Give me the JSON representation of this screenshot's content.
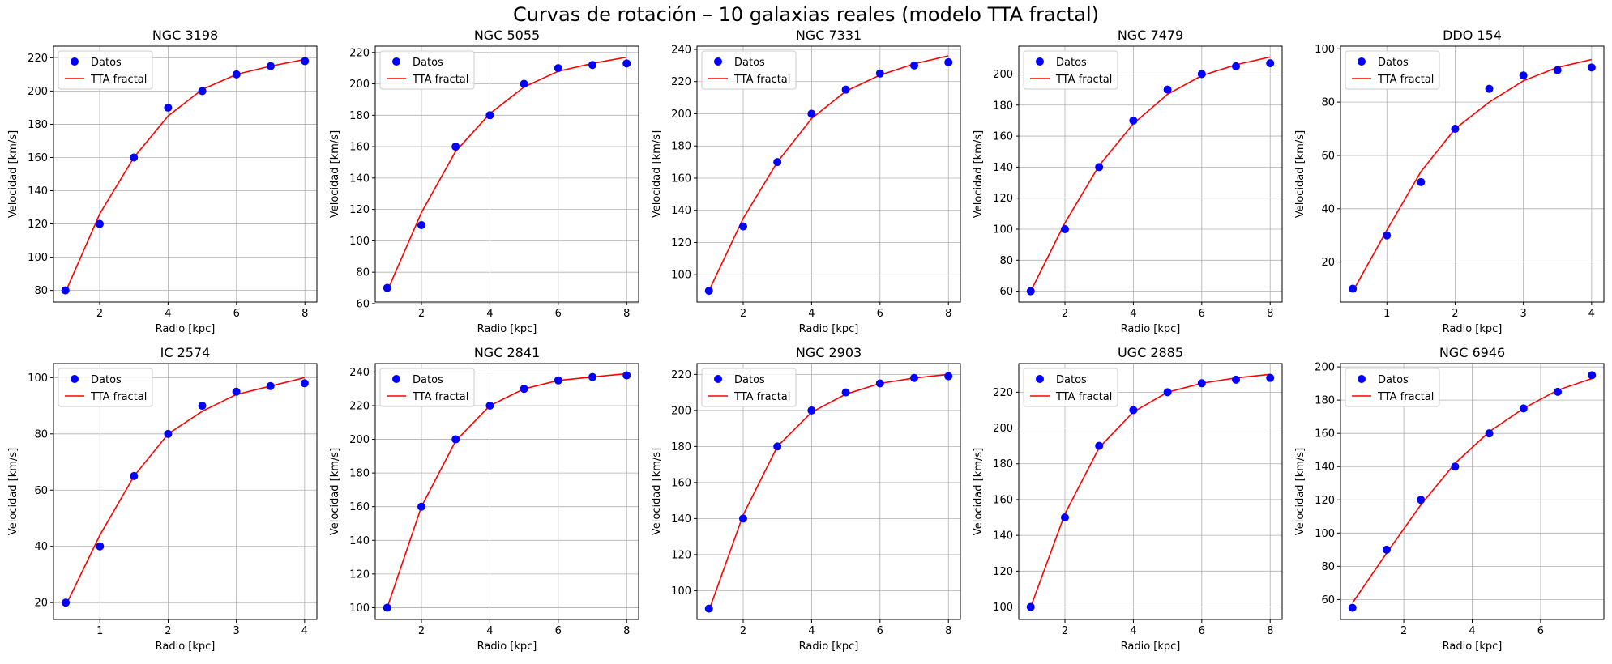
{
  "suptitle": "Curvas de rotación – 10 galaxias reales (modelo TTA fractal)",
  "legend": {
    "data_label": "Datos",
    "model_label": "TTA fractal",
    "placement": "upper-left"
  },
  "colors": {
    "data": "#0000ff",
    "model": "#ff0000",
    "grid": "#b0b0b0"
  },
  "chart_data": [
    {
      "type": "scatter+line",
      "title": "NGC 3198",
      "xlabel": "Radio [kpc]",
      "ylabel": "Velocidad [km/s]",
      "grid": true,
      "xlim": [
        0.65,
        8.35
      ],
      "ylim": [
        73,
        227
      ],
      "xticks": [
        2,
        4,
        6,
        8
      ],
      "yticks": [
        80,
        100,
        120,
        140,
        160,
        180,
        200,
        220
      ],
      "x": [
        1,
        2,
        3,
        4,
        5,
        6,
        7,
        8
      ],
      "data": [
        80,
        120,
        160,
        190,
        200,
        210,
        215,
        218
      ],
      "model": [
        79,
        126,
        160,
        185,
        201,
        210,
        215,
        219
      ]
    },
    {
      "type": "scatter+line",
      "title": "NGC 5055",
      "xlabel": "Radio [kpc]",
      "ylabel": "Velocidad [km/s]",
      "grid": true,
      "xlim": [
        0.65,
        8.35
      ],
      "ylim": [
        61,
        224
      ],
      "xticks": [
        2,
        4,
        6,
        8
      ],
      "yticks": [
        60,
        80,
        100,
        120,
        140,
        160,
        180,
        200,
        220
      ],
      "x": [
        1,
        2,
        3,
        4,
        5,
        6,
        7,
        8
      ],
      "data": [
        70,
        110,
        160,
        180,
        200,
        210,
        212,
        213
      ],
      "model": [
        68,
        118,
        157,
        181,
        198,
        208,
        213,
        217
      ]
    },
    {
      "type": "scatter+line",
      "title": "NGC 7331",
      "xlabel": "Radio [kpc]",
      "ylabel": "Velocidad [km/s]",
      "grid": true,
      "xlim": [
        0.65,
        8.35
      ],
      "ylim": [
        83,
        242
      ],
      "xticks": [
        2,
        4,
        6,
        8
      ],
      "yticks": [
        100,
        120,
        140,
        160,
        180,
        200,
        220,
        240
      ],
      "x": [
        1,
        2,
        3,
        4,
        5,
        6,
        7,
        8
      ],
      "data": [
        90,
        130,
        170,
        200,
        215,
        225,
        230,
        232
      ],
      "model": [
        90,
        135,
        170,
        197,
        214,
        224,
        231,
        236
      ]
    },
    {
      "type": "scatter+line",
      "title": "NGC 7479",
      "xlabel": "Radio [kpc]",
      "ylabel": "Velocidad [km/s]",
      "grid": true,
      "xlim": [
        0.65,
        8.35
      ],
      "ylim": [
        53,
        218
      ],
      "xticks": [
        2,
        4,
        6,
        8
      ],
      "yticks": [
        60,
        80,
        100,
        120,
        140,
        160,
        180,
        200
      ],
      "x": [
        1,
        2,
        3,
        4,
        5,
        6,
        7,
        8
      ],
      "data": [
        60,
        100,
        140,
        170,
        190,
        200,
        205,
        207
      ],
      "model": [
        60,
        104,
        141,
        168,
        187,
        199,
        206,
        211
      ]
    },
    {
      "type": "scatter+line",
      "title": "DDO 154",
      "xlabel": "Radio [kpc]",
      "ylabel": "Velocidad [km/s]",
      "grid": true,
      "xlim": [
        0.32,
        4.18
      ],
      "ylim": [
        5,
        101
      ],
      "xticks": [
        1,
        2,
        3,
        4
      ],
      "yticks": [
        20,
        40,
        60,
        80,
        100
      ],
      "x": [
        0.5,
        1.0,
        1.5,
        2.0,
        2.5,
        3.0,
        3.5,
        4.0
      ],
      "data": [
        10,
        30,
        50,
        70,
        85,
        90,
        92,
        93
      ],
      "model": [
        9,
        32,
        54,
        70,
        80,
        88,
        93,
        96
      ]
    },
    {
      "type": "scatter+line",
      "title": "IC 2574",
      "xlabel": "Radio [kpc]",
      "ylabel": "Velocidad [km/s]",
      "grid": true,
      "xlim": [
        0.32,
        4.18
      ],
      "ylim": [
        14,
        105
      ],
      "xticks": [
        1,
        2,
        3,
        4
      ],
      "yticks": [
        20,
        40,
        60,
        80,
        100
      ],
      "x": [
        0.5,
        1.0,
        1.5,
        2.0,
        2.5,
        3.0,
        3.5,
        4.0
      ],
      "data": [
        20,
        40,
        65,
        80,
        90,
        95,
        97,
        98
      ],
      "model": [
        19,
        44,
        65,
        80,
        88,
        94,
        97,
        100
      ]
    },
    {
      "type": "scatter+line",
      "title": "NGC 2841",
      "xlabel": "Radio [kpc]",
      "ylabel": "Velocidad [km/s]",
      "grid": true,
      "xlim": [
        0.65,
        8.35
      ],
      "ylim": [
        93,
        245
      ],
      "xticks": [
        2,
        4,
        6,
        8
      ],
      "yticks": [
        100,
        120,
        140,
        160,
        180,
        200,
        220,
        240
      ],
      "x": [
        1,
        2,
        3,
        4,
        5,
        6,
        7,
        8
      ],
      "data": [
        100,
        160,
        200,
        220,
        230,
        235,
        237,
        238
      ],
      "model": [
        100,
        160,
        199,
        220,
        230,
        235,
        237,
        239
      ]
    },
    {
      "type": "scatter+line",
      "title": "NGC 2903",
      "xlabel": "Radio [kpc]",
      "ylabel": "Velocidad [km/s]",
      "grid": true,
      "xlim": [
        0.65,
        8.35
      ],
      "ylim": [
        84,
        226
      ],
      "xticks": [
        2,
        4,
        6,
        8
      ],
      "yticks": [
        100,
        120,
        140,
        160,
        180,
        200,
        220
      ],
      "x": [
        1,
        2,
        3,
        4,
        5,
        6,
        7,
        8
      ],
      "data": [
        90,
        140,
        180,
        200,
        210,
        215,
        218,
        219
      ],
      "model": [
        89,
        142,
        180,
        199,
        209,
        215,
        218,
        220
      ]
    },
    {
      "type": "scatter+line",
      "title": "UGC 2885",
      "xlabel": "Radio [kpc]",
      "ylabel": "Velocidad [km/s]",
      "grid": true,
      "xlim": [
        0.65,
        8.35
      ],
      "ylim": [
        93,
        236
      ],
      "xticks": [
        2,
        4,
        6,
        8
      ],
      "yticks": [
        100,
        120,
        140,
        160,
        180,
        200,
        220
      ],
      "x": [
        1,
        2,
        3,
        4,
        5,
        6,
        7,
        8
      ],
      "data": [
        100,
        150,
        190,
        210,
        220,
        225,
        227,
        228
      ],
      "model": [
        100,
        152,
        189,
        209,
        220,
        225,
        228,
        230
      ]
    },
    {
      "type": "scatter+line",
      "title": "NGC 6946",
      "xlabel": "Radio [kpc]",
      "ylabel": "Velocidad [km/s]",
      "grid": true,
      "xlim": [
        0.15,
        7.85
      ],
      "ylim": [
        48,
        202
      ],
      "xticks": [
        2,
        4,
        6
      ],
      "yticks": [
        60,
        80,
        100,
        120,
        140,
        160,
        180,
        200
      ],
      "x": [
        0.5,
        1.5,
        2.5,
        3.5,
        4.5,
        5.5,
        6.5,
        7.5
      ],
      "data": [
        55,
        90,
        120,
        140,
        160,
        175,
        185,
        195
      ],
      "model": [
        58,
        88,
        117,
        142,
        161,
        175,
        186,
        193
      ]
    }
  ]
}
